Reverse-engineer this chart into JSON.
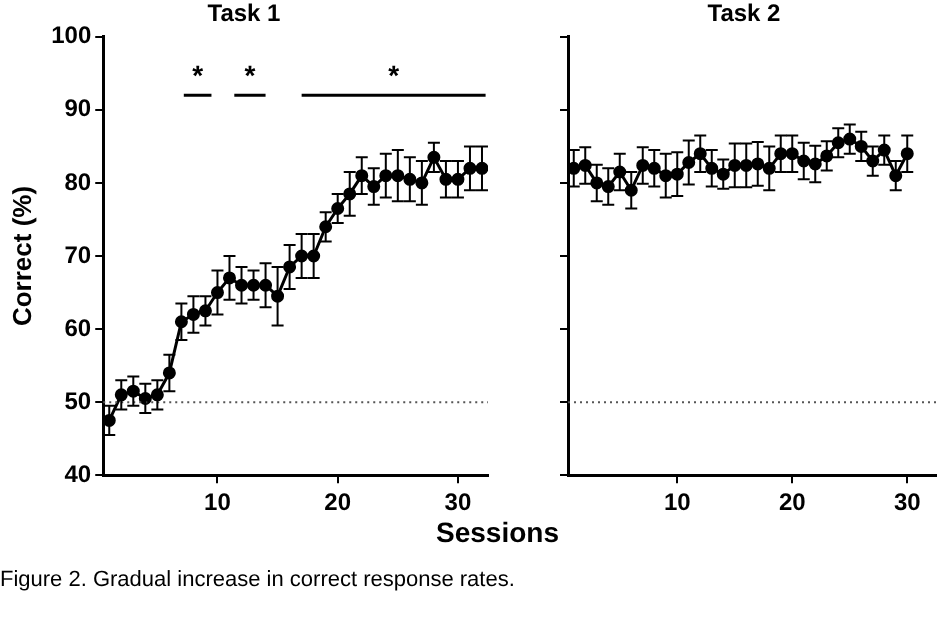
{
  "chart_data": [
    {
      "type": "line",
      "title": "Task 1",
      "ylabel": "Correct (%)",
      "x": [
        1,
        2,
        3,
        4,
        5,
        6,
        7,
        8,
        9,
        10,
        11,
        12,
        13,
        14,
        15,
        16,
        17,
        18,
        19,
        20,
        21,
        22,
        23,
        24,
        25,
        26,
        27,
        28,
        29,
        30,
        31,
        32
      ],
      "series": [
        {
          "color": "#000000",
          "values": [
            47.5,
            51,
            51.5,
            50.5,
            51,
            54,
            61,
            62,
            62.5,
            65,
            67,
            66,
            66,
            66,
            64.5,
            68.5,
            70,
            70,
            74,
            76.5,
            78.5,
            81,
            79.5,
            81,
            81,
            80.5,
            80,
            83.5,
            80.5,
            80.5,
            82,
            82
          ],
          "errors": [
            2,
            2,
            2,
            2,
            2,
            2.5,
            2.5,
            2.5,
            2,
            3,
            3,
            2.5,
            2,
            3,
            4,
            3,
            3,
            3,
            2,
            2,
            3,
            2.5,
            2.5,
            3,
            3.5,
            3,
            3,
            2,
            2.5,
            2.5,
            3,
            3
          ]
        },
        {
          "type": "line",
          "color": "#000000",
          "marker": "none",
          "x": [
            7.2,
            9.5
          ],
          "values": [
            92,
            92
          ]
        },
        {
          "type": "line",
          "color": "#000000",
          "marker": "none",
          "x": [
            11.4,
            14
          ],
          "values": [
            92,
            92
          ]
        },
        {
          "type": "line",
          "color": "#000000",
          "marker": "none",
          "x": [
            17,
            32.3
          ],
          "values": [
            92,
            92
          ]
        }
      ],
      "xlim": [
        0.5,
        32.5
      ],
      "xticks": [
        10,
        20,
        30
      ],
      "ylim": [
        40,
        100
      ],
      "yticks": [
        40,
        50,
        60,
        70,
        80,
        90,
        100
      ],
      "grid": false,
      "legend": false,
      "marker": "circle",
      "line_style": "solid",
      "ref_lines": [
        {
          "axis": "y",
          "value": 50,
          "line_style": "dotted",
          "color": "#555555"
        }
      ],
      "annotations": [
        {
          "text": "*",
          "x": 8.35,
          "y": 92
        },
        {
          "text": "*",
          "x": 12.7,
          "y": 92
        },
        {
          "text": "*",
          "x": 24.65,
          "y": 92
        },
        "Figure 2. Gradual increase in correct response rates."
      ]
    },
    {
      "type": "line",
      "title": "Task 2",
      "xlabel": "Sessions",
      "x": [
        1,
        2,
        3,
        4,
        5,
        6,
        7,
        8,
        9,
        10,
        11,
        12,
        13,
        14,
        15,
        16,
        17,
        18,
        19,
        20,
        21,
        22,
        23,
        24,
        25,
        26,
        27,
        28,
        29,
        30
      ],
      "series": [
        {
          "color": "#000000",
          "values": [
            82,
            82.4,
            80,
            79.5,
            81.5,
            79,
            82.4,
            82,
            81,
            81.2,
            82.8,
            84,
            82,
            81.2,
            82.4,
            82.4,
            82.6,
            82,
            84,
            84,
            83,
            82.6,
            83.7,
            85.5,
            86,
            85,
            83,
            84.5,
            81,
            84
          ],
          "errors": [
            2.5,
            2.5,
            2.5,
            2.5,
            2.5,
            2.5,
            2.5,
            2.5,
            3,
            3,
            3,
            2.5,
            2.5,
            2,
            3,
            3,
            3,
            3,
            2.5,
            2.5,
            2.5,
            2.5,
            2,
            2,
            2,
            2,
            2,
            2,
            2,
            2.5
          ]
        }
      ],
      "xlim": [
        0.5,
        32.5
      ],
      "xticks": [
        10,
        20,
        30
      ],
      "ylim": [
        40,
        100
      ],
      "yticks": [
        40,
        50,
        60,
        70,
        80,
        90,
        100
      ],
      "tick_labels": "x",
      "grid": false,
      "legend": false,
      "marker": "circle",
      "line_style": "solid",
      "ref_lines": [
        {
          "axis": "y",
          "value": 50,
          "line_style": "dotted",
          "color": "#555555"
        }
      ]
    }
  ]
}
